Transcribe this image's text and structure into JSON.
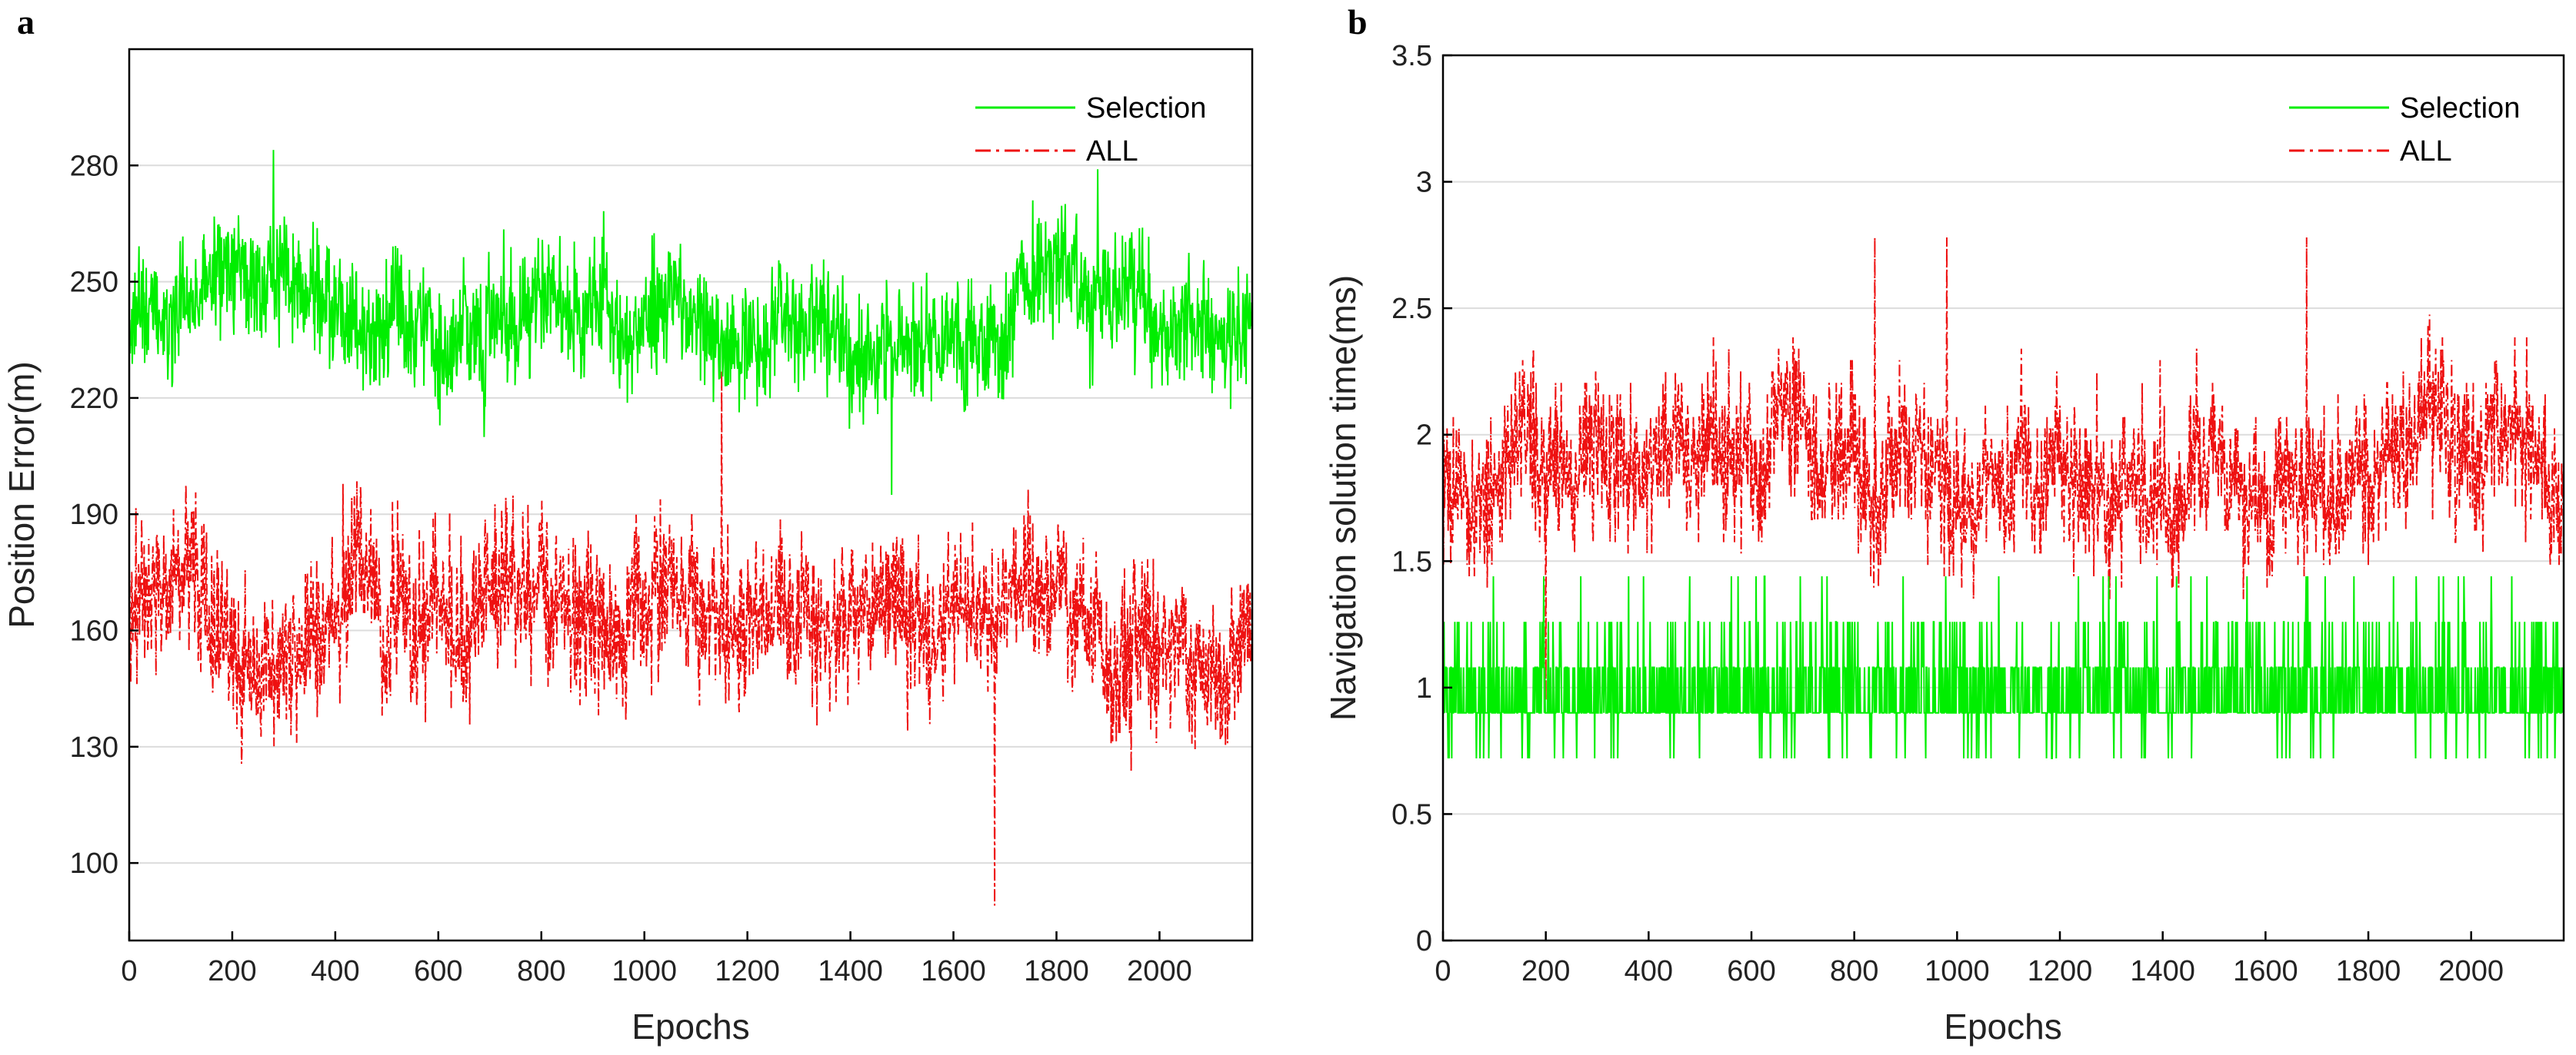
{
  "chart_data": [
    {
      "type": "line",
      "panel_label": "a",
      "xlabel": "Epochs",
      "ylabel": "Position Error(m)",
      "xlim": [
        0,
        2180
      ],
      "ylim": [
        80,
        310
      ],
      "xticks": [
        0,
        200,
        400,
        600,
        800,
        1000,
        1200,
        1400,
        1600,
        1800,
        2000
      ],
      "yticks": [
        100,
        130,
        160,
        190,
        220,
        250,
        280
      ],
      "grid": "horizontal",
      "legend_position": "top-right",
      "series": [
        {
          "name": "Selection",
          "color": "#00ee00",
          "dash": "solid",
          "mean": 242,
          "noise": 11,
          "min": 195,
          "max": 284
        },
        {
          "name": "ALL",
          "color": "#ee1111",
          "dash": "dashdot",
          "mean": 163,
          "noise": 14,
          "min": 89,
          "max": 227
        }
      ]
    },
    {
      "type": "line",
      "panel_label": "b",
      "xlabel": "Epochs",
      "ylabel": "Navigation solution time(ms)",
      "xlim": [
        0,
        2180
      ],
      "ylim": [
        0,
        3.5
      ],
      "xticks": [
        0,
        200,
        400,
        600,
        800,
        1000,
        1200,
        1400,
        1600,
        1800,
        2000
      ],
      "yticks": [
        0,
        0.5,
        1,
        1.5,
        2,
        2.5,
        3,
        3.5
      ],
      "ytick_labels": [
        "0",
        "0.5",
        "1",
        "1.5",
        "2",
        "2.5",
        "3",
        "3.5"
      ],
      "grid": "horizontal",
      "legend_position": "top-right",
      "series": [
        {
          "name": "Selection",
          "color": "#00ee00",
          "dash": "solid",
          "levels": [
            0.72,
            0.9,
            1.08,
            1.26,
            1.44
          ],
          "mean": 1.0,
          "min": 0.72,
          "max": 1.44
        },
        {
          "name": "ALL",
          "color": "#ee1111",
          "dash": "dashdot",
          "mean": 1.85,
          "noise": 0.22,
          "min": 0.95,
          "max": 2.78
        }
      ]
    }
  ]
}
